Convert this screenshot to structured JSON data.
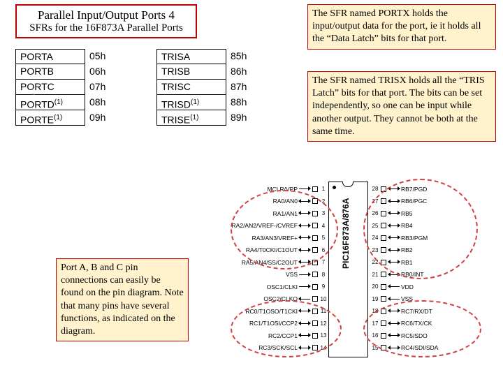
{
  "title": {
    "line1": "Parallel Input/Output Ports 4",
    "line2": "SFRs for the 16F873A Parallel Ports"
  },
  "portx_text": "The SFR named PORTX holds the input/output data for the port, ie it holds all the “Data Latch” bits for that port.",
  "trisx_text": "The SFR named TRISX holds all the “TRIS Latch” bits for that port. The bits can be set independently, so one can be input while another output. They cannot be both at the same time.",
  "note_text": "Port A, B and C pin connections can easily be found on the pin diagram. Note that many pins have several functions, as indicated on the diagram.",
  "sfr_left": [
    {
      "name": "PORTA",
      "addr": "05h"
    },
    {
      "name": "PORTB",
      "addr": "06h"
    },
    {
      "name": "PORTC",
      "addr": "07h"
    },
    {
      "name": "PORTD(1)",
      "addr": "08h"
    },
    {
      "name": "PORTE(1)",
      "addr": "09h"
    }
  ],
  "sfr_right": [
    {
      "name": "TRISA",
      "addr": "85h"
    },
    {
      "name": "TRISB",
      "addr": "86h"
    },
    {
      "name": "TRISC",
      "addr": "87h"
    },
    {
      "name": "TRISD(1)",
      "addr": "88h"
    },
    {
      "name": "TRISE(1)",
      "addr": "89h"
    }
  ],
  "chip_name": "PIC16F873A/876A",
  "pins_left": [
    {
      "n": "1",
      "label": "MCLR/VPP",
      "dir": "r"
    },
    {
      "n": "2",
      "label": "RA0/AN0",
      "dir": "b"
    },
    {
      "n": "3",
      "label": "RA1/AN1",
      "dir": "b"
    },
    {
      "n": "4",
      "label": "RA2/AN2/VREF-/CVREF",
      "dir": "b"
    },
    {
      "n": "5",
      "label": "RA3/AN3/VREF+",
      "dir": "b"
    },
    {
      "n": "6",
      "label": "RA4/T0CKI/C1OUT",
      "dir": "b"
    },
    {
      "n": "7",
      "label": "RA5/AN4/SS/C2OUT",
      "dir": "b"
    },
    {
      "n": "8",
      "label": "VSS",
      "dir": "r"
    },
    {
      "n": "9",
      "label": "OSC1/CLKI",
      "dir": "r"
    },
    {
      "n": "10",
      "label": "OSC2/CLKO",
      "dir": "l"
    },
    {
      "n": "11",
      "label": "RC0/T1OSO/T1CKI",
      "dir": "b"
    },
    {
      "n": "12",
      "label": "RC1/T1OSI/CCP2",
      "dir": "b"
    },
    {
      "n": "13",
      "label": "RC2/CCP1",
      "dir": "b"
    },
    {
      "n": "14",
      "label": "RC3/SCK/SCL",
      "dir": "b"
    }
  ],
  "pins_right": [
    {
      "n": "28",
      "label": "RB7/PGD",
      "dir": "b"
    },
    {
      "n": "27",
      "label": "RB6/PGC",
      "dir": "b"
    },
    {
      "n": "26",
      "label": "RB5",
      "dir": "b"
    },
    {
      "n": "25",
      "label": "RB4",
      "dir": "b"
    },
    {
      "n": "24",
      "label": "RB3/PGM",
      "dir": "b"
    },
    {
      "n": "23",
      "label": "RB2",
      "dir": "b"
    },
    {
      "n": "22",
      "label": "RB1",
      "dir": "b"
    },
    {
      "n": "21",
      "label": "RB0/INT",
      "dir": "b"
    },
    {
      "n": "20",
      "label": "VDD",
      "dir": "l"
    },
    {
      "n": "19",
      "label": "VSS",
      "dir": "l"
    },
    {
      "n": "18",
      "label": "RC7/RX/DT",
      "dir": "b"
    },
    {
      "n": "17",
      "label": "RC6/TX/CK",
      "dir": "b"
    },
    {
      "n": "16",
      "label": "RC5/SDO",
      "dir": "b"
    },
    {
      "n": "15",
      "label": "RC4/SDI/SDA",
      "dir": "b"
    }
  ],
  "colors": {
    "border_red": "#c00000",
    "box_fill": "#fff2cc",
    "dash": "#d04040"
  }
}
